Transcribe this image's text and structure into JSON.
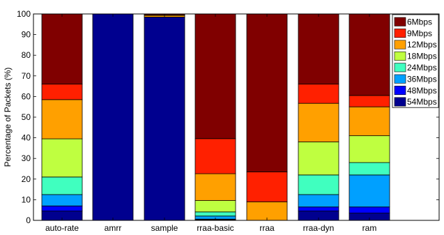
{
  "chart_data": {
    "type": "bar",
    "stacked": true,
    "ylabel": "Percentage of Packets (%)",
    "xlabel": "",
    "ylim": [
      0,
      100
    ],
    "yticks": [
      0,
      10,
      20,
      30,
      40,
      50,
      60,
      70,
      80,
      90,
      100
    ],
    "categories": [
      "auto-rate",
      "amrr",
      "sample",
      "rraa-basic",
      "rraa",
      "rraa-dyn",
      "ram"
    ],
    "legend_position": "top-right",
    "series": [
      {
        "name": "54Mbps",
        "color": "#00008f",
        "values": [
          4.5,
          100,
          98.5,
          0.3,
          0,
          4.5,
          3.5
        ]
      },
      {
        "name": "48Mbps",
        "color": "#0000ff",
        "values": [
          2.5,
          0,
          0,
          0.3,
          0,
          2.0,
          3.0
        ]
      },
      {
        "name": "36Mbps",
        "color": "#00a0ff",
        "values": [
          5.5,
          0,
          0,
          1.5,
          0,
          6.0,
          15.5
        ]
      },
      {
        "name": "24Mbps",
        "color": "#40ffbf",
        "values": [
          8.5,
          0,
          0,
          2.0,
          0,
          9.5,
          6.0
        ]
      },
      {
        "name": "18Mbps",
        "color": "#bfff40",
        "values": [
          18.5,
          0,
          0,
          5.5,
          0,
          16.0,
          13.0
        ]
      },
      {
        "name": "12Mbps",
        "color": "#ffa000",
        "values": [
          19.0,
          0,
          0.8,
          13.0,
          9.0,
          18.7,
          14.0
        ]
      },
      {
        "name": "9Mbps",
        "color": "#ff2000",
        "values": [
          7.5,
          0,
          0.2,
          17.0,
          14.5,
          9.3,
          5.5
        ]
      },
      {
        "name": "6Mbps",
        "color": "#800000",
        "values": [
          34.0,
          0,
          0.5,
          60.4,
          76.5,
          34.0,
          39.5
        ]
      }
    ],
    "legend_order": [
      "6Mbps",
      "9Mbps",
      "12Mbps",
      "18Mbps",
      "24Mbps",
      "36Mbps",
      "48Mbps",
      "54Mbps"
    ]
  }
}
